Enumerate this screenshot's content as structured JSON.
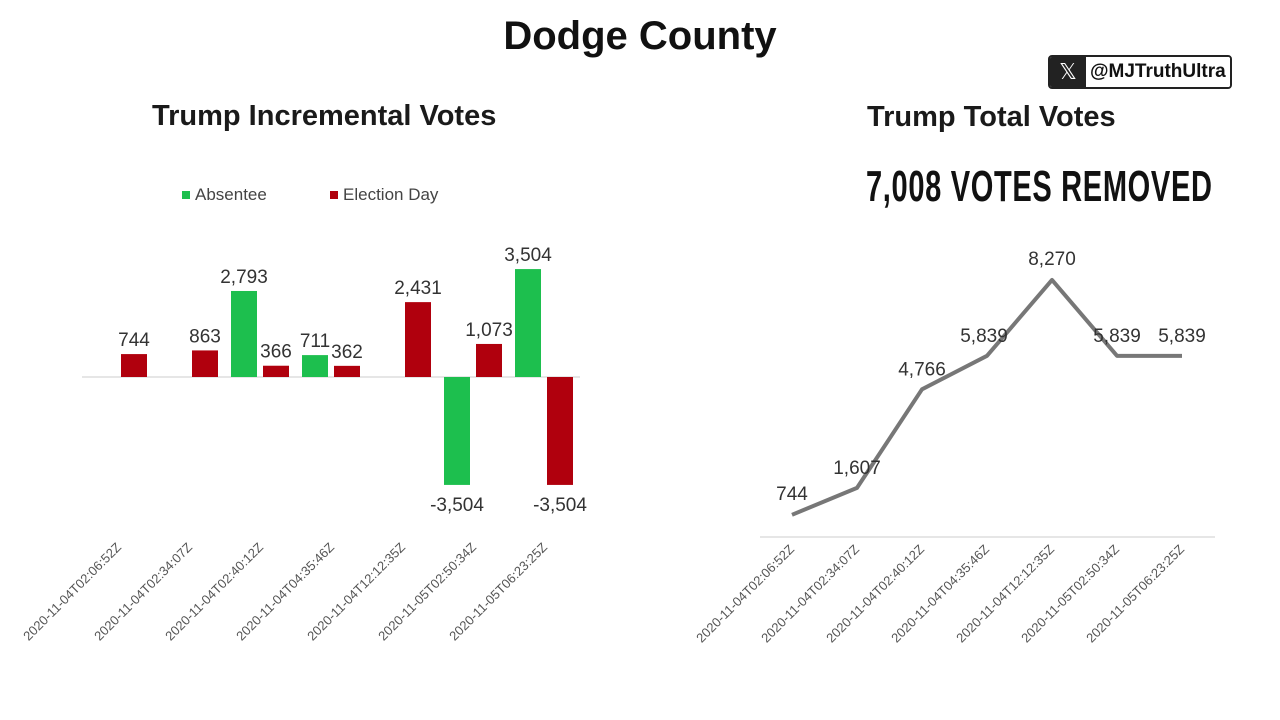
{
  "page_title": "Dodge County",
  "watermark": {
    "icon": "x-logo-icon",
    "handle": "@MJTruthUltra"
  },
  "headline": "7,008 VOTES REMOVED",
  "colors": {
    "absentee": "#1dbf4e",
    "election_day": "#b0000d",
    "line": "#777777"
  },
  "chart_data": [
    {
      "type": "bar",
      "title": "Trump Incremental Votes",
      "categories": [
        "2020-11-04T02:06:52Z",
        "2020-11-04T02:34:07Z",
        "2020-11-04T02:40:12Z",
        "2020-11-04T04:35:46Z",
        "2020-11-04T12:12:35Z",
        "2020-11-05T02:50:34Z",
        "2020-11-05T06:23:25Z"
      ],
      "series": [
        {
          "name": "Absentee",
          "values": [
            null,
            null,
            2793,
            711,
            null,
            -3504,
            3504
          ],
          "labels": [
            "",
            "",
            "2,793",
            "711",
            "",
            "-3,504",
            "3,504"
          ]
        },
        {
          "name": "Election Day",
          "values": [
            744,
            863,
            366,
            362,
            2431,
            1073,
            -3504
          ],
          "labels": [
            "744",
            "863",
            "366",
            "362",
            "2,431",
            "1,073",
            "-3,504"
          ]
        }
      ],
      "legend": "top"
    },
    {
      "type": "line",
      "title": "Trump Total Votes",
      "categories": [
        "2020-11-04T02:06:52Z",
        "2020-11-04T02:34:07Z",
        "2020-11-04T02:40:12Z",
        "2020-11-04T04:35:46Z",
        "2020-11-04T12:12:35Z",
        "2020-11-05T02:50:34Z",
        "2020-11-05T06:23:25Z"
      ],
      "values": [
        744,
        1607,
        4766,
        5839,
        8270,
        5839,
        5839
      ],
      "labels": [
        "744",
        "1,607",
        "4,766",
        "5,839",
        "8,270",
        "5,839",
        "5,839"
      ]
    }
  ]
}
